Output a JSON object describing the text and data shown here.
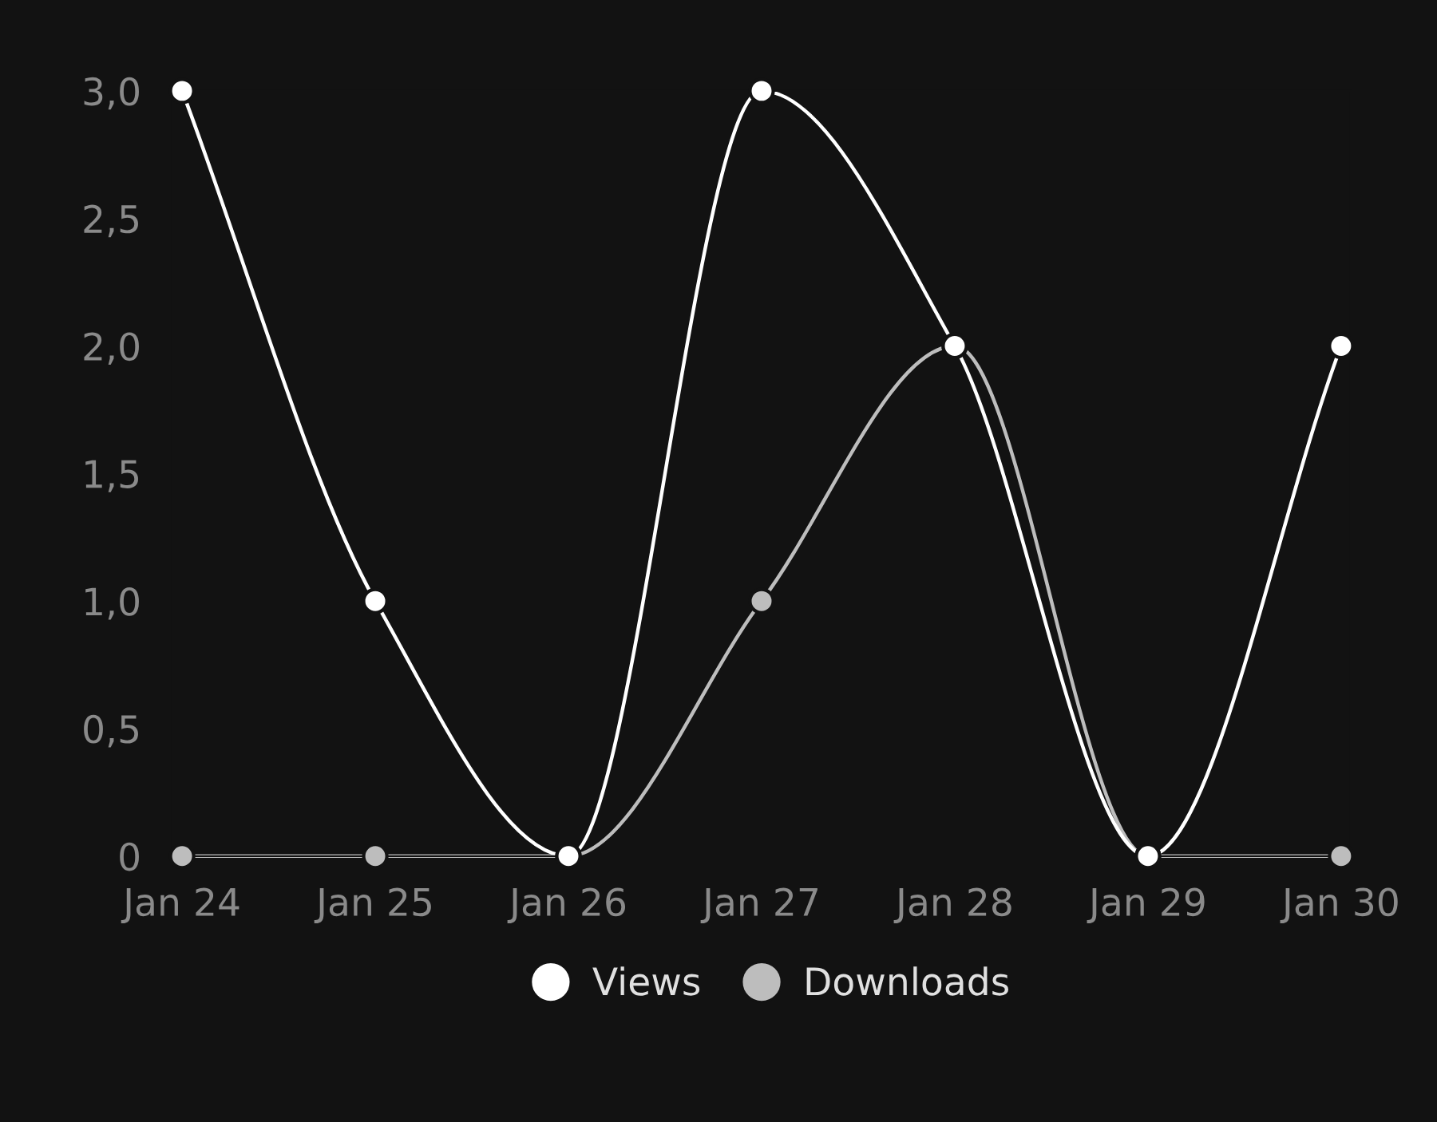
{
  "chart_data": {
    "type": "line",
    "categories": [
      "Jan 24",
      "Jan 25",
      "Jan 26",
      "Jan 27",
      "Jan 28",
      "Jan 29",
      "Jan 30"
    ],
    "series": [
      {
        "name": "Views",
        "color": "#ffffff",
        "values": [
          3,
          1,
          0,
          3,
          2,
          0,
          2
        ]
      },
      {
        "name": "Downloads",
        "color": "#bdbdbd",
        "values": [
          0,
          0,
          0,
          1,
          2,
          0,
          0
        ]
      }
    ],
    "ylim": [
      0,
      3
    ],
    "yticks": [
      0,
      {
        "value": 0.5,
        "label": "0,5"
      },
      {
        "value": 1,
        "label": "1,0"
      },
      {
        "value": 1.5,
        "label": "1,5"
      },
      {
        "value": 2,
        "label": "2,0"
      },
      {
        "value": 2.5,
        "label": "2,5"
      },
      {
        "value": 3,
        "label": "3,0"
      }
    ],
    "legend": "bottom",
    "marker": "circle",
    "line_style": "solid"
  }
}
